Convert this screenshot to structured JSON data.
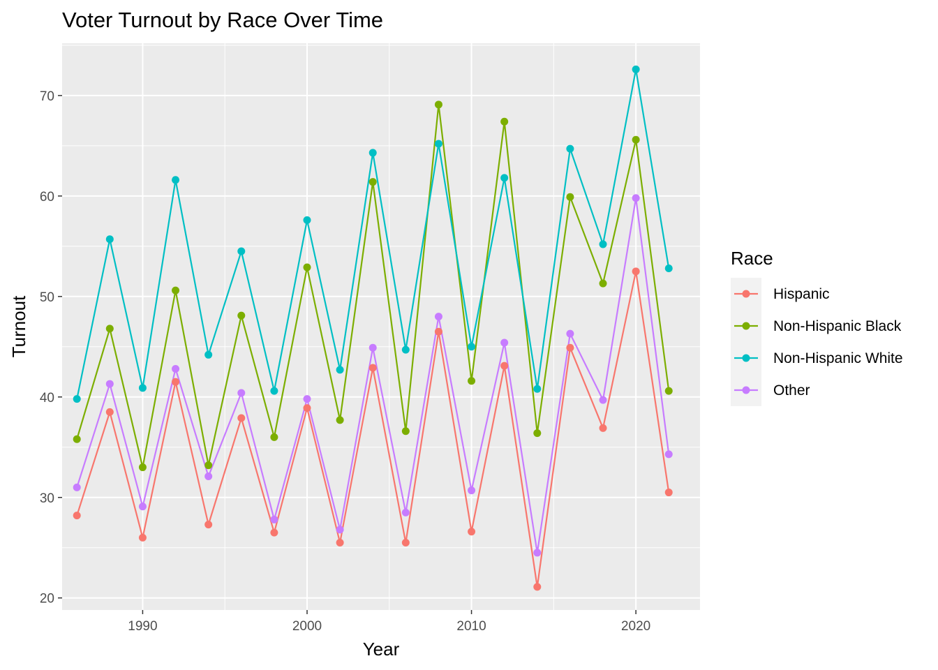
{
  "chart_data": {
    "type": "line",
    "title": "Voter Turnout by Race Over Time",
    "xlabel": "Year",
    "ylabel": "Turnout",
    "xlim": [
      1985.1,
      2023.9
    ],
    "ylim": [
      18.8,
      75.2
    ],
    "x_ticks": [
      1990,
      2000,
      2010,
      2020
    ],
    "y_ticks": [
      20,
      30,
      40,
      50,
      60,
      70
    ],
    "grid": true,
    "legend": {
      "title": "Race",
      "position": "right"
    },
    "x": [
      1986,
      1988,
      1990,
      1992,
      1994,
      1996,
      1998,
      2000,
      2002,
      2004,
      2006,
      2008,
      2010,
      2012,
      2014,
      2016,
      2018,
      2020,
      2022
    ],
    "series": [
      {
        "name": "Hispanic",
        "color": "#F8766D",
        "values": [
          28.2,
          38.5,
          26.0,
          41.5,
          27.3,
          37.9,
          26.5,
          38.9,
          25.5,
          42.9,
          25.5,
          46.5,
          26.6,
          43.1,
          21.1,
          44.9,
          36.9,
          52.5,
          30.5
        ]
      },
      {
        "name": "Non-Hispanic Black",
        "color": "#7CAE00",
        "values": [
          35.8,
          46.8,
          33.0,
          50.6,
          33.2,
          48.1,
          36.0,
          52.9,
          37.7,
          61.4,
          36.6,
          69.1,
          41.6,
          67.4,
          36.4,
          59.9,
          51.3,
          65.6,
          40.6
        ]
      },
      {
        "name": "Non-Hispanic White",
        "color": "#00BFC4",
        "values": [
          39.8,
          55.7,
          40.9,
          61.6,
          44.2,
          54.5,
          40.6,
          57.6,
          42.7,
          64.3,
          44.7,
          65.2,
          45.0,
          61.8,
          40.8,
          64.7,
          55.2,
          72.6,
          52.8
        ]
      },
      {
        "name": "Other",
        "color": "#C77CFF",
        "values": [
          31.0,
          41.3,
          29.1,
          42.8,
          32.1,
          40.4,
          27.8,
          39.8,
          26.8,
          44.9,
          28.5,
          48.0,
          30.7,
          45.4,
          24.5,
          46.3,
          39.7,
          59.8,
          34.3
        ]
      }
    ]
  }
}
